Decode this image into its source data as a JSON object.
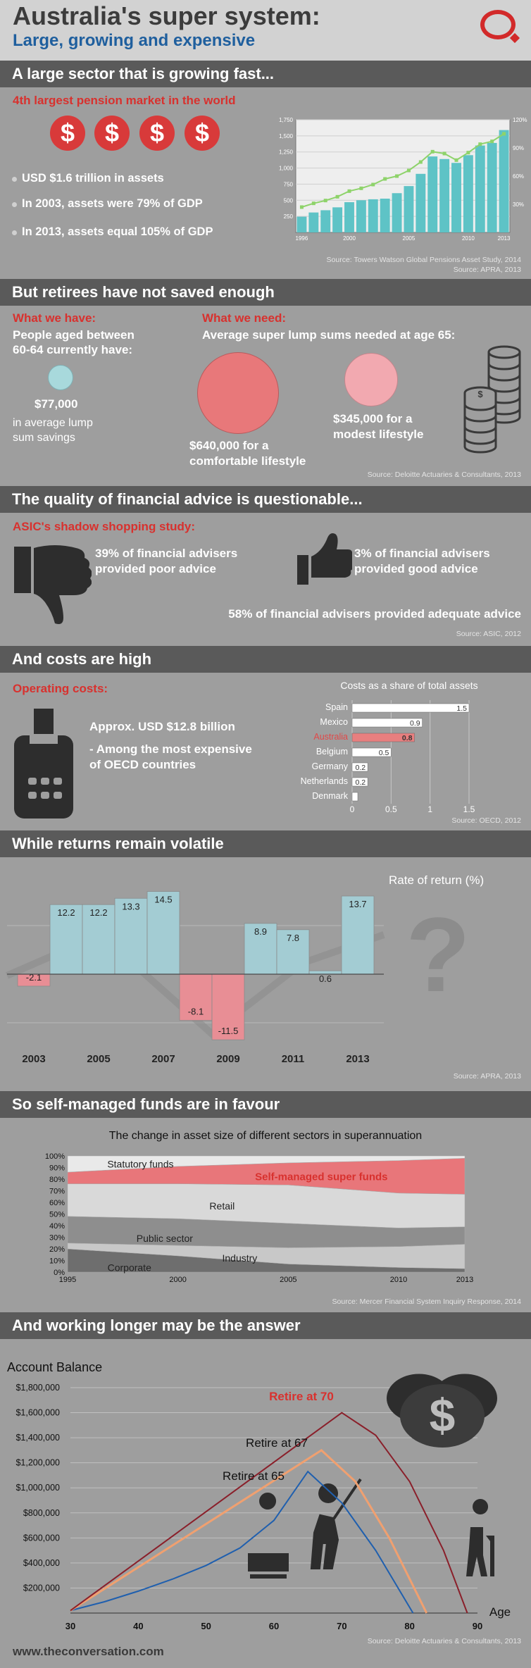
{
  "header": {
    "title": "Australia's super system:",
    "subtitle": "Large, growing and expensive",
    "logo_icon": "the-conversation-logo-icon",
    "accent_color": "#d22a2a"
  },
  "s1": {
    "heading": "A large sector that is growing fast...",
    "subheading": "4th largest pension market in the world",
    "dollar_symbol": "$",
    "bullets": [
      "USD $1.6 trillion in assets",
      "In 2003, assets were 79% of GDP",
      "In 2013, assets equal 105% of GDP"
    ],
    "source1": "Source: Towers Watson Global Pensions Asset Study, 2014",
    "source2": "Source: APRA, 2013"
  },
  "s2": {
    "heading": "But retirees have not saved enough",
    "have_title": "What we have:",
    "have_text1": "People aged between",
    "have_text2": "60-64 currently have:",
    "have_amount": "$77,000",
    "have_desc1": "in average lump",
    "have_desc2": "sum savings",
    "need_title": "What we need:",
    "need_text": "Average super lump sums needed at age 65:",
    "comf_amount": "$640,000 for a",
    "comf_desc": "comfortable lifestyle",
    "mod_amount": "$345,000 for a",
    "mod_desc": "modest lifestyle",
    "source": "Source: Deloitte Actuaries & Consultants, 2013"
  },
  "s3": {
    "heading": "The quality of financial advice is questionable...",
    "subheading": "ASIC's shadow shopping study:",
    "poor1": "39% of financial advisers",
    "poor2": "provided poor advice",
    "good1": "3% of financial advisers",
    "good2": "provided good advice",
    "adequate": "58% of financial advisers provided adequate advice",
    "source": "Source: ASIC, 2012"
  },
  "s4": {
    "heading": "And costs are high",
    "subheading": "Operating costs:",
    "amount": "Approx. USD $12.8 billion",
    "note1": "- Among the most expensive",
    "note2": "of OECD countries",
    "source": "Source: OECD, 2012"
  },
  "s5": {
    "heading": "While returns remain volatile",
    "source": "Source: APRA, 2013"
  },
  "s6": {
    "heading": "So self-managed funds are in favour",
    "source": "Source: Mercer Financial System Inquiry Response, 2014"
  },
  "s7": {
    "heading": "And working longer may be the answer",
    "source": "Source: Deloitte Actuaries & Consultants, 2013"
  },
  "footer": {
    "site": "www.theconversation.com"
  },
  "chart_data": [
    {
      "id": "assets",
      "type": "bar",
      "categories": [
        "1996",
        "1997",
        "1998",
        "1999",
        "2000",
        "2001",
        "2002",
        "2003",
        "2004",
        "2005",
        "2006",
        "2007",
        "2008",
        "2009",
        "2010",
        "2011",
        "2012",
        "2013"
      ],
      "x_tick_labels": [
        "1996",
        "2000",
        "2005",
        "2010",
        "2013"
      ],
      "values": [
        245,
        310,
        345,
        390,
        470,
        500,
        515,
        525,
        610,
        720,
        910,
        1180,
        1140,
        1080,
        1200,
        1350,
        1390,
        1590
      ],
      "line_values_pct": [
        27,
        31,
        34,
        38,
        44,
        47,
        51,
        57,
        60,
        66,
        75,
        86,
        84,
        77,
        85,
        94,
        97,
        105
      ],
      "ylim": [
        0,
        1750
      ],
      "y_ticks": [
        250,
        500,
        750,
        1000,
        1250,
        1500,
        1750
      ],
      "y2lim": [
        0,
        120
      ],
      "y2_ticks": [
        "30%",
        "60%",
        "90%",
        "120%"
      ],
      "bar_color": "#5ec3c6",
      "line_color": "#8ed36a"
    },
    {
      "id": "costs",
      "type": "bar",
      "title": "Costs as a share of total assets",
      "categories": [
        "Spain",
        "Mexico",
        "Australia",
        "Belgium",
        "Germany",
        "Netherlands",
        "Denmark"
      ],
      "values": [
        1.5,
        0.9,
        0.8,
        0.5,
        0.2,
        0.2,
        null
      ],
      "value_labels": [
        "1.5",
        "0.9",
        "0.8",
        "0.5",
        "0.2",
        "0.2",
        ""
      ],
      "ticks": [
        "0",
        "0.5",
        "1",
        "1.5"
      ],
      "xlim": [
        0,
        1.5
      ],
      "highlight": "Australia",
      "highlight_color": "#e87f7f"
    },
    {
      "id": "returns",
      "type": "bar",
      "title": "Rate of return (%)",
      "categories": [
        "2003",
        "2004",
        "2005",
        "2006",
        "2007",
        "2008",
        "2009",
        "2010",
        "2011",
        "2012",
        "2013"
      ],
      "x_tick_labels": [
        "2003",
        "2005",
        "2007",
        "2009",
        "2011",
        "2013"
      ],
      "values": [
        -2.1,
        12.2,
        12.2,
        13.3,
        14.5,
        -8.1,
        -11.5,
        8.9,
        7.8,
        0.6,
        13.7
      ],
      "value_labels": [
        "-2.1",
        "12.2",
        "12.2",
        "13.3",
        "14.5",
        "-8.1",
        "-11.5",
        "8.9",
        "7.8",
        "0.6",
        "13.7"
      ],
      "positive_color": "#a3ccd3",
      "negative_color": "#e88e95"
    },
    {
      "id": "sectors",
      "type": "area",
      "title": "The change in asset size of different sectors in superannuation",
      "x": [
        1995,
        2000,
        2005,
        2010,
        2013
      ],
      "x_tick_labels": [
        "1995",
        "2000",
        "2005",
        "2010",
        "2013"
      ],
      "y_ticks": [
        "0%",
        "10%",
        "20%",
        "30%",
        "40%",
        "50%",
        "60%",
        "70%",
        "80%",
        "90%",
        "100%"
      ],
      "series": [
        {
          "name": "Corporate",
          "values": [
            20,
            14,
            7,
            4,
            3
          ]
        },
        {
          "name": "Industry",
          "values": [
            5,
            9,
            14,
            18,
            21
          ]
        },
        {
          "name": "Public sector",
          "values": [
            23,
            23,
            21,
            16,
            15
          ]
        },
        {
          "name": "Retail",
          "values": [
            28,
            30,
            33,
            30,
            28
          ]
        },
        {
          "name": "Self-managed super funds",
          "values": [
            10,
            15,
            19,
            28,
            31
          ]
        },
        {
          "name": "Statutory funds",
          "values": [
            14,
            9,
            6,
            4,
            2
          ]
        }
      ],
      "colors": [
        "#6e6e6e",
        "#c8c8c8",
        "#8e8e8e",
        "#d9d9d9",
        "#e8767a",
        "#e9e9e9"
      ]
    },
    {
      "id": "balance",
      "type": "line",
      "ylabel": "Account Balance",
      "xlabel": "Age",
      "x_ticks": [
        "30",
        "40",
        "50",
        "60",
        "70",
        "80",
        "90"
      ],
      "y_ticks": [
        "$200,000",
        "$400,000",
        "$600,000",
        "$800,000",
        "$1,000,000",
        "$1,200,000",
        "$1,400,000",
        "$1,600,000",
        "$1,800,000"
      ],
      "xlim": [
        30,
        90
      ],
      "ylim": [
        0,
        1800000
      ],
      "series": [
        {
          "name": "Retire at 65",
          "color": "#1f5fae",
          "x": [
            30,
            35,
            40,
            45,
            50,
            55,
            60,
            65,
            70,
            75,
            80.5
          ],
          "y": [
            20000,
            90000,
            175000,
            270000,
            380000,
            520000,
            740000,
            1130000,
            880000,
            500000,
            0
          ]
        },
        {
          "name": "Retire at 67",
          "color": "#f0a070",
          "x": [
            30,
            67,
            72,
            77,
            82.5
          ],
          "y": [
            20000,
            1300000,
            1050000,
            600000,
            0
          ]
        },
        {
          "name": "Retire at 70",
          "color": "#8a1f2a",
          "x": [
            30,
            70,
            75,
            80,
            85,
            88.5
          ],
          "y": [
            20000,
            1600000,
            1420000,
            1050000,
            500000,
            0
          ]
        }
      ]
    }
  ]
}
